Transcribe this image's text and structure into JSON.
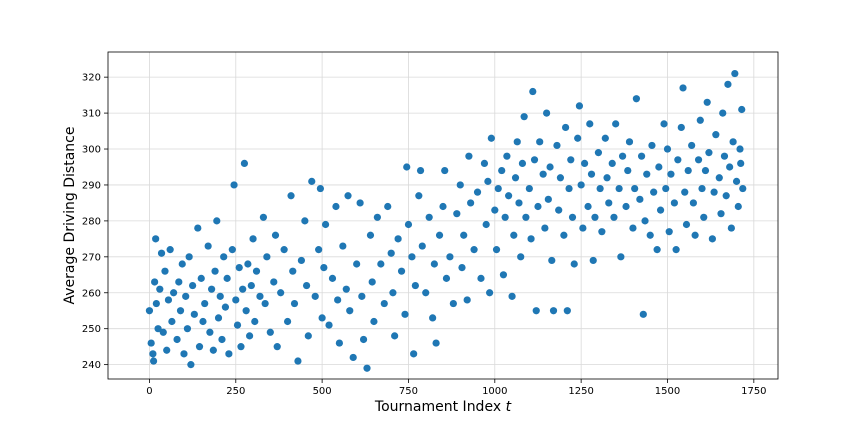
{
  "chart_data": {
    "type": "scatter",
    "title": "",
    "xlabel": "Tournament Index",
    "xlabel_var": "t",
    "ylabel": "Average Driving Distance",
    "xlim": [
      -120,
      1820
    ],
    "ylim": [
      236,
      327
    ],
    "xticks": [
      0,
      250,
      500,
      750,
      1000,
      1250,
      1500,
      1750
    ],
    "yticks": [
      240,
      250,
      260,
      270,
      280,
      290,
      300,
      310,
      320
    ],
    "xtick_labels": [
      "0",
      "250",
      "500",
      "750",
      "1000",
      "1250",
      "1500",
      "1750"
    ],
    "ytick_labels": [
      "240",
      "250",
      "260",
      "270",
      "280",
      "290",
      "300",
      "310",
      "320"
    ],
    "grid": true,
    "legend": "none",
    "marker_color": "#1f77b4",
    "points": [
      [
        0,
        255
      ],
      [
        5,
        246
      ],
      [
        10,
        243
      ],
      [
        12,
        241
      ],
      [
        15,
        263
      ],
      [
        18,
        275
      ],
      [
        20,
        257
      ],
      [
        25,
        250
      ],
      [
        30,
        261
      ],
      [
        35,
        271
      ],
      [
        40,
        249
      ],
      [
        45,
        266
      ],
      [
        50,
        244
      ],
      [
        55,
        258
      ],
      [
        60,
        272
      ],
      [
        65,
        252
      ],
      [
        70,
        260
      ],
      [
        80,
        247
      ],
      [
        85,
        263
      ],
      [
        90,
        255
      ],
      [
        95,
        268
      ],
      [
        100,
        243
      ],
      [
        105,
        259
      ],
      [
        110,
        250
      ],
      [
        115,
        270
      ],
      [
        120,
        240
      ],
      [
        125,
        262
      ],
      [
        130,
        254
      ],
      [
        140,
        278
      ],
      [
        145,
        245
      ],
      [
        150,
        264
      ],
      [
        155,
        252
      ],
      [
        160,
        257
      ],
      [
        170,
        273
      ],
      [
        175,
        249
      ],
      [
        180,
        261
      ],
      [
        185,
        244
      ],
      [
        190,
        266
      ],
      [
        195,
        280
      ],
      [
        200,
        253
      ],
      [
        205,
        259
      ],
      [
        210,
        247
      ],
      [
        215,
        270
      ],
      [
        220,
        256
      ],
      [
        225,
        264
      ],
      [
        230,
        243
      ],
      [
        240,
        272
      ],
      [
        245,
        290
      ],
      [
        250,
        258
      ],
      [
        255,
        251
      ],
      [
        260,
        267
      ],
      [
        265,
        245
      ],
      [
        270,
        261
      ],
      [
        275,
        296
      ],
      [
        280,
        255
      ],
      [
        285,
        268
      ],
      [
        290,
        248
      ],
      [
        295,
        262
      ],
      [
        300,
        275
      ],
      [
        305,
        252
      ],
      [
        310,
        266
      ],
      [
        320,
        259
      ],
      [
        330,
        281
      ],
      [
        335,
        257
      ],
      [
        340,
        270
      ],
      [
        350,
        249
      ],
      [
        360,
        263
      ],
      [
        365,
        276
      ],
      [
        370,
        245
      ],
      [
        380,
        260
      ],
      [
        390,
        272
      ],
      [
        400,
        252
      ],
      [
        410,
        287
      ],
      [
        415,
        266
      ],
      [
        420,
        257
      ],
      [
        430,
        241
      ],
      [
        440,
        269
      ],
      [
        450,
        280
      ],
      [
        455,
        262
      ],
      [
        460,
        248
      ],
      [
        470,
        291
      ],
      [
        480,
        259
      ],
      [
        490,
        272
      ],
      [
        495,
        289
      ],
      [
        500,
        253
      ],
      [
        505,
        267
      ],
      [
        510,
        279
      ],
      [
        520,
        251
      ],
      [
        530,
        264
      ],
      [
        540,
        284
      ],
      [
        545,
        258
      ],
      [
        550,
        246
      ],
      [
        560,
        273
      ],
      [
        570,
        261
      ],
      [
        575,
        287
      ],
      [
        580,
        255
      ],
      [
        590,
        242
      ],
      [
        600,
        268
      ],
      [
        610,
        285
      ],
      [
        615,
        259
      ],
      [
        620,
        247
      ],
      [
        630,
        239
      ],
      [
        640,
        276
      ],
      [
        645,
        263
      ],
      [
        650,
        252
      ],
      [
        660,
        281
      ],
      [
        670,
        268
      ],
      [
        680,
        257
      ],
      [
        690,
        284
      ],
      [
        700,
        271
      ],
      [
        705,
        260
      ],
      [
        710,
        248
      ],
      [
        720,
        275
      ],
      [
        730,
        266
      ],
      [
        740,
        254
      ],
      [
        745,
        295
      ],
      [
        750,
        279
      ],
      [
        760,
        270
      ],
      [
        765,
        243
      ],
      [
        770,
        262
      ],
      [
        780,
        287
      ],
      [
        785,
        294
      ],
      [
        790,
        273
      ],
      [
        800,
        260
      ],
      [
        810,
        281
      ],
      [
        820,
        253
      ],
      [
        825,
        268
      ],
      [
        830,
        246
      ],
      [
        840,
        276
      ],
      [
        850,
        284
      ],
      [
        855,
        294
      ],
      [
        860,
        264
      ],
      [
        870,
        270
      ],
      [
        880,
        257
      ],
      [
        890,
        282
      ],
      [
        900,
        290
      ],
      [
        905,
        267
      ],
      [
        910,
        276
      ],
      [
        920,
        258
      ],
      [
        925,
        298
      ],
      [
        930,
        285
      ],
      [
        940,
        272
      ],
      [
        950,
        288
      ],
      [
        960,
        264
      ],
      [
        970,
        296
      ],
      [
        975,
        279
      ],
      [
        980,
        291
      ],
      [
        985,
        260
      ],
      [
        990,
        303
      ],
      [
        1000,
        283
      ],
      [
        1005,
        272
      ],
      [
        1010,
        289
      ],
      [
        1020,
        294
      ],
      [
        1025,
        265
      ],
      [
        1030,
        281
      ],
      [
        1035,
        298
      ],
      [
        1040,
        287
      ],
      [
        1050,
        259
      ],
      [
        1055,
        276
      ],
      [
        1060,
        292
      ],
      [
        1065,
        302
      ],
      [
        1070,
        285
      ],
      [
        1075,
        270
      ],
      [
        1080,
        296
      ],
      [
        1085,
        309
      ],
      [
        1090,
        281
      ],
      [
        1100,
        289
      ],
      [
        1105,
        275
      ],
      [
        1110,
        316
      ],
      [
        1115,
        297
      ],
      [
        1120,
        255
      ],
      [
        1125,
        284
      ],
      [
        1130,
        302
      ],
      [
        1140,
        293
      ],
      [
        1145,
        278
      ],
      [
        1150,
        310
      ],
      [
        1155,
        286
      ],
      [
        1160,
        295
      ],
      [
        1165,
        269
      ],
      [
        1170,
        255
      ],
      [
        1180,
        301
      ],
      [
        1185,
        283
      ],
      [
        1190,
        292
      ],
      [
        1200,
        276
      ],
      [
        1205,
        306
      ],
      [
        1210,
        255
      ],
      [
        1215,
        289
      ],
      [
        1220,
        297
      ],
      [
        1225,
        281
      ],
      [
        1230,
        268
      ],
      [
        1240,
        303
      ],
      [
        1245,
        312
      ],
      [
        1250,
        290
      ],
      [
        1255,
        278
      ],
      [
        1260,
        296
      ],
      [
        1270,
        284
      ],
      [
        1275,
        307
      ],
      [
        1280,
        293
      ],
      [
        1285,
        269
      ],
      [
        1290,
        281
      ],
      [
        1300,
        299
      ],
      [
        1305,
        289
      ],
      [
        1310,
        277
      ],
      [
        1320,
        303
      ],
      [
        1325,
        292
      ],
      [
        1330,
        285
      ],
      [
        1340,
        296
      ],
      [
        1345,
        281
      ],
      [
        1350,
        307
      ],
      [
        1360,
        289
      ],
      [
        1365,
        270
      ],
      [
        1370,
        298
      ],
      [
        1380,
        284
      ],
      [
        1385,
        294
      ],
      [
        1390,
        302
      ],
      [
        1400,
        278
      ],
      [
        1405,
        289
      ],
      [
        1410,
        314
      ],
      [
        1420,
        286
      ],
      [
        1425,
        298
      ],
      [
        1430,
        254
      ],
      [
        1435,
        280
      ],
      [
        1440,
        293
      ],
      [
        1450,
        276
      ],
      [
        1455,
        301
      ],
      [
        1460,
        288
      ],
      [
        1470,
        272
      ],
      [
        1475,
        295
      ],
      [
        1480,
        283
      ],
      [
        1490,
        307
      ],
      [
        1495,
        289
      ],
      [
        1500,
        300
      ],
      [
        1505,
        277
      ],
      [
        1510,
        293
      ],
      [
        1520,
        285
      ],
      [
        1525,
        272
      ],
      [
        1530,
        297
      ],
      [
        1540,
        306
      ],
      [
        1545,
        317
      ],
      [
        1550,
        288
      ],
      [
        1555,
        279
      ],
      [
        1560,
        294
      ],
      [
        1570,
        301
      ],
      [
        1575,
        285
      ],
      [
        1580,
        276
      ],
      [
        1590,
        297
      ],
      [
        1595,
        308
      ],
      [
        1600,
        289
      ],
      [
        1605,
        281
      ],
      [
        1610,
        294
      ],
      [
        1615,
        313
      ],
      [
        1620,
        299
      ],
      [
        1630,
        275
      ],
      [
        1635,
        288
      ],
      [
        1640,
        304
      ],
      [
        1650,
        292
      ],
      [
        1655,
        282
      ],
      [
        1660,
        310
      ],
      [
        1665,
        298
      ],
      [
        1670,
        287
      ],
      [
        1675,
        318
      ],
      [
        1680,
        295
      ],
      [
        1685,
        278
      ],
      [
        1690,
        302
      ],
      [
        1695,
        321
      ],
      [
        1700,
        291
      ],
      [
        1705,
        284
      ],
      [
        1710,
        300
      ],
      [
        1712,
        296
      ],
      [
        1715,
        311
      ],
      [
        1718,
        289
      ]
    ]
  }
}
